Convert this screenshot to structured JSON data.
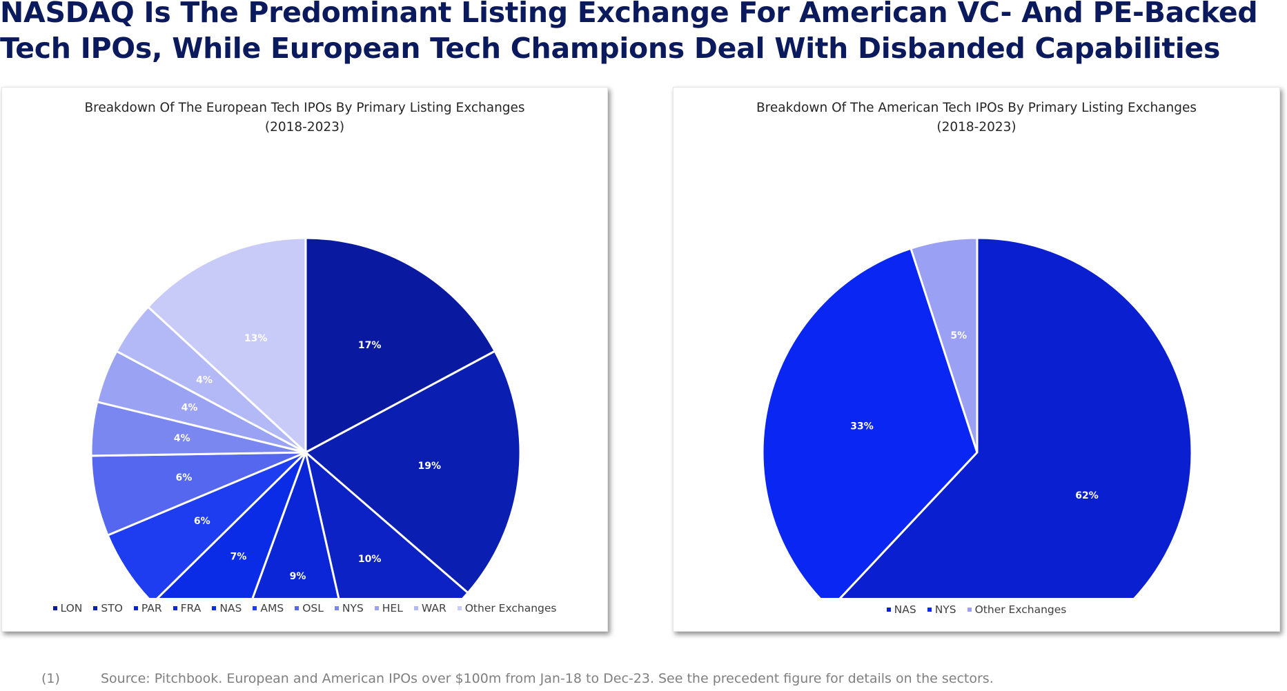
{
  "page": {
    "title": "NASDAQ Is The Predominant Listing Exchange For American VC- And PE-Backed Tech IPOs, While European Tech Champions Deal With Disbanded Capabilities",
    "footnote_number": "(1)",
    "footnote_text": "Source: Pitchbook. European and American IPOs over $100m from Jan-18 to Dec-23. See the precedent figure for details on the sectors."
  },
  "chart_data": [
    {
      "type": "pie",
      "title": "Breakdown Of The European Tech IPOs By Primary Listing Exchanges",
      "subtitle": "(2018-2023)",
      "legend_position": "bottom",
      "start_angle_deg": 0,
      "direction": "clockwise",
      "slices": [
        {
          "name": "LON",
          "value": 17,
          "label": "17%",
          "color": "#0a1aa0"
        },
        {
          "name": "STO",
          "value": 19,
          "label": "19%",
          "color": "#0b1eb2"
        },
        {
          "name": "PAR",
          "value": 10,
          "label": "10%",
          "color": "#0c22c4"
        },
        {
          "name": "FRA",
          "value": 9,
          "label": "9%",
          "color": "#0a26d6"
        },
        {
          "name": "NAS",
          "value": 7,
          "label": "7%",
          "color": "#0b2ce6"
        },
        {
          "name": "AMS",
          "value": 6,
          "label": "6%",
          "color": "#1f3df0"
        },
        {
          "name": "OSL",
          "value": 6,
          "label": "6%",
          "color": "#5566ef"
        },
        {
          "name": "NYS",
          "value": 4,
          "label": "4%",
          "color": "#7a87f1"
        },
        {
          "name": "HEL",
          "value": 4,
          "label": "4%",
          "color": "#9aa3f3"
        },
        {
          "name": "WAR",
          "value": 4,
          "label": "4%",
          "color": "#b3b9f6"
        },
        {
          "name": "Other Exchanges",
          "value": 13,
          "label": "13%",
          "color": "#c8cbf8"
        }
      ]
    },
    {
      "type": "pie",
      "title": "Breakdown Of The American Tech IPOs By Primary Listing Exchanges",
      "subtitle": "(2018-2023)",
      "legend_position": "bottom",
      "start_angle_deg": 0,
      "direction": "clockwise",
      "slices": [
        {
          "name": "NAS",
          "value": 62,
          "label": "62%",
          "color": "#0a1fd0"
        },
        {
          "name": "NYS",
          "value": 33,
          "label": "33%",
          "color": "#0a26f2"
        },
        {
          "name": "Other Exchanges",
          "value": 5,
          "label": "5%",
          "color": "#9aa0f4"
        }
      ]
    }
  ]
}
